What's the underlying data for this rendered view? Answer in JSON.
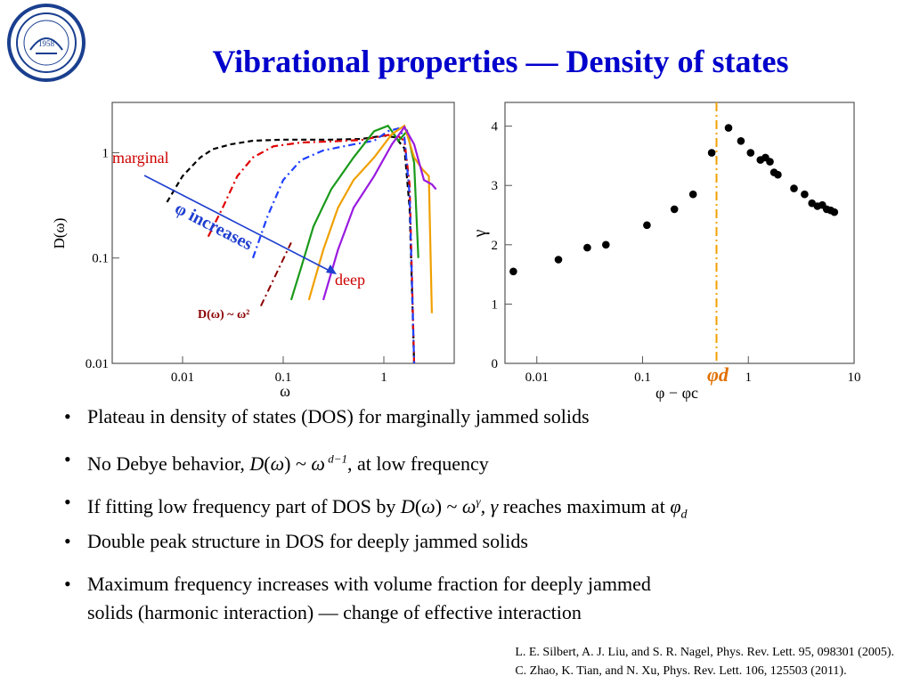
{
  "slide": {
    "title": "Vibrational properties — Density of states"
  },
  "logo": {
    "icon": "university-seal-icon",
    "color": "#1a3f8f",
    "year": "1958"
  },
  "left_plot": {
    "ylabel": "D(ω)",
    "xlabel": "ω",
    "xticks": [
      "0.01",
      "0.1",
      "1"
    ],
    "yticks": [
      "1",
      "0.1",
      "0.01"
    ],
    "annotations": {
      "marginal": "marginal",
      "deep": "deep",
      "phi_increases": "φ increases",
      "debye": "D(ω) ~ ω²"
    },
    "colors": {
      "arrow": "#1f3fcf",
      "marginal": "#cc0000",
      "deep": "#cc0000",
      "phi": "#1f3fcf",
      "debye": "#8b0000"
    }
  },
  "right_plot": {
    "ylabel": "γ",
    "xlabel": "φ − φc",
    "xticks": [
      "0.01",
      "0.1",
      "1",
      "10"
    ],
    "yticks": [
      "0",
      "1",
      "2",
      "3",
      "4"
    ],
    "phi_d_label": "φd",
    "colors": {
      "points": "#000000",
      "phi_d_line": "#f0a000"
    }
  },
  "chart_data": [
    {
      "type": "line",
      "title": "",
      "xlabel": "ω",
      "ylabel": "D(ω)",
      "xscale": "log",
      "yscale": "log",
      "xlim": [
        0.002,
        5
      ],
      "ylim": [
        0.01,
        3
      ],
      "series": [
        {
          "color": "#000000",
          "style": "dashed",
          "x": [
            0.007,
            0.01,
            0.015,
            0.02,
            0.03,
            0.05,
            0.1,
            0.3,
            0.6,
            1.0,
            1.3,
            1.6,
            1.8,
            2.0
          ],
          "y": [
            0.34,
            0.6,
            0.9,
            1.08,
            1.2,
            1.3,
            1.33,
            1.33,
            1.35,
            1.45,
            1.4,
            1.1,
            0.3,
            0.01
          ]
        },
        {
          "color": "#e00000",
          "style": "dash-dot",
          "x": [
            0.018,
            0.025,
            0.035,
            0.05,
            0.08,
            0.15,
            0.3,
            0.6,
            1.0,
            1.3,
            1.6,
            1.8,
            2.0
          ],
          "y": [
            0.16,
            0.3,
            0.6,
            0.9,
            1.15,
            1.25,
            1.28,
            1.32,
            1.45,
            1.5,
            1.3,
            0.5,
            0.01
          ]
        },
        {
          "color": "#1f3fff",
          "style": "dash-dot",
          "x": [
            0.05,
            0.07,
            0.1,
            0.15,
            0.25,
            0.5,
            0.8,
            1.1,
            1.4,
            1.6,
            1.8,
            2.0
          ],
          "y": [
            0.1,
            0.25,
            0.55,
            0.85,
            1.05,
            1.2,
            1.3,
            1.6,
            1.7,
            1.4,
            0.4,
            0.01
          ]
        },
        {
          "color": "#1a9a1a",
          "style": "solid",
          "x": [
            0.12,
            0.15,
            0.2,
            0.3,
            0.5,
            0.8,
            1.1,
            1.4,
            1.7,
            2.0,
            2.2
          ],
          "y": [
            0.04,
            0.08,
            0.2,
            0.45,
            0.9,
            1.6,
            1.8,
            1.3,
            1.6,
            0.8,
            0.1
          ]
        },
        {
          "color": "#f0a000",
          "style": "solid",
          "x": [
            0.18,
            0.25,
            0.35,
            0.5,
            0.8,
            1.2,
            1.6,
            2.0,
            2.4,
            2.8,
            3.0
          ],
          "y": [
            0.04,
            0.12,
            0.3,
            0.55,
            0.9,
            1.5,
            1.8,
            0.9,
            0.7,
            0.6,
            0.03
          ]
        },
        {
          "color": "#9a1adf",
          "style": "solid",
          "x": [
            0.25,
            0.35,
            0.5,
            0.8,
            1.2,
            1.6,
            2.0,
            2.5,
            3.0,
            3.3
          ],
          "y": [
            0.04,
            0.12,
            0.3,
            0.6,
            1.2,
            1.75,
            1.2,
            0.55,
            0.5,
            0.45
          ]
        }
      ],
      "reference_line": {
        "label": "D(ω) ~ ω²",
        "color": "#8b0000",
        "x": [
          0.06,
          0.12
        ],
        "y": [
          0.035,
          0.14
        ]
      }
    },
    {
      "type": "scatter",
      "title": "",
      "xlabel": "φ − φc",
      "ylabel": "γ",
      "xscale": "log",
      "xlim": [
        0.005,
        10
      ],
      "ylim": [
        0,
        4.4
      ],
      "x": [
        0.006,
        0.016,
        0.03,
        0.045,
        0.11,
        0.2,
        0.3,
        0.45,
        0.65,
        0.85,
        1.05,
        1.3,
        1.45,
        1.6,
        1.75,
        1.9,
        2.7,
        3.4,
        4.0,
        4.5,
        5.0,
        5.5,
        6.0,
        6.5
      ],
      "y": [
        1.55,
        1.75,
        1.95,
        2.0,
        2.33,
        2.6,
        2.85,
        3.55,
        3.97,
        3.75,
        3.55,
        3.43,
        3.47,
        3.4,
        3.22,
        3.18,
        2.95,
        2.85,
        2.7,
        2.65,
        2.67,
        2.6,
        2.58,
        2.55
      ],
      "phi_d": 0.5,
      "phi_d_label": "φd"
    }
  ],
  "bullets": [
    {
      "parts": [
        "Plateau in density of states (DOS) for marginally jammed solids"
      ]
    },
    {
      "parts": [
        "No Debye behavior, ",
        "D",
        "(",
        "ω",
        ") ~ ",
        "ω",
        " d−1",
        ", at low frequency"
      ]
    },
    {
      "parts": [
        "If fitting low frequency part of DOS by ",
        "D",
        "(",
        "ω",
        ") ~ ",
        "ω",
        "γ",
        ", ",
        "γ",
        " reaches maximum at ",
        "φ",
        "d"
      ]
    },
    {
      "parts": [
        "Double peak structure in DOS for deeply jammed solids"
      ]
    },
    {
      "parts": [
        "Maximum frequency increases with volume fraction for deeply jammed",
        "solids (harmonic interaction) — change of effective interaction"
      ]
    }
  ],
  "references": [
    "L. E. Silbert, A. J. Liu, and S. R. Nagel, Phys. Rev. Lett. 95, 098301 (2005).",
    "C. Zhao, K. Tian, and N. Xu, Phys. Rev. Lett. 106, 125503 (2011)."
  ]
}
